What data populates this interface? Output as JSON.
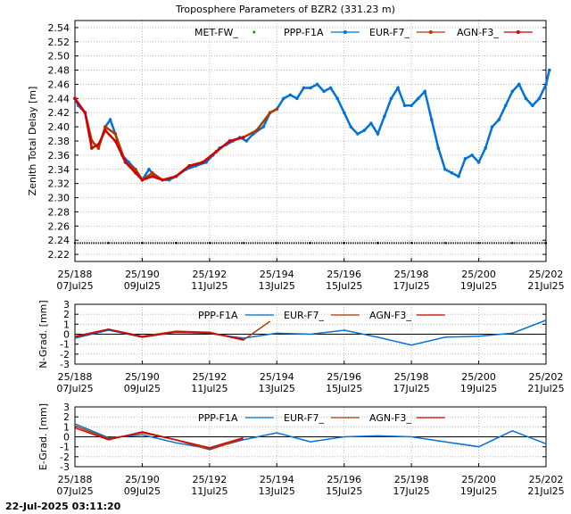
{
  "title": "Troposphere Parameters of BZR2 (331.23 m)",
  "footer": "22-Jul-2025 03:11:20",
  "colors": {
    "met": "#00a000",
    "ppp": "#0072d8",
    "eur": "#b03a00",
    "agn": "#d40000",
    "baseline": "#000000",
    "grid": "#aaaaaa"
  },
  "chart_data": [
    {
      "type": "scatter",
      "ylabel": "Zenith Total Delay [m]",
      "ylim": [
        2.21,
        2.55
      ],
      "yticks": [
        2.22,
        2.24,
        2.26,
        2.28,
        2.3,
        2.32,
        2.34,
        2.36,
        2.38,
        2.4,
        2.42,
        2.44,
        2.46,
        2.48,
        2.5,
        2.52,
        2.54
      ],
      "xlim": [
        188,
        202
      ],
      "xticks": [
        {
          "doy": 188,
          "l1": "25/188",
          "l2": "07Jul25"
        },
        {
          "doy": 190,
          "l1": "25/190",
          "l2": "09Jul25"
        },
        {
          "doy": 192,
          "l1": "25/192",
          "l2": "11Jul25"
        },
        {
          "doy": 194,
          "l1": "25/194",
          "l2": "13Jul25"
        },
        {
          "doy": 196,
          "l1": "25/196",
          "l2": "15Jul25"
        },
        {
          "doy": 198,
          "l1": "25/198",
          "l2": "17Jul25"
        },
        {
          "doy": 200,
          "l1": "25/200",
          "l2": "19Jul25"
        },
        {
          "doy": 202,
          "l1": "25/202",
          "l2": "21Jul25"
        }
      ],
      "grid": true,
      "legend_position": "top",
      "series": [
        {
          "name": "MET-FW_",
          "color_key": "met",
          "values": [
            [
              188.0,
              2.236
            ],
            [
              189.0,
              2.236
            ],
            [
              190.0,
              2.236
            ],
            [
              191.0,
              2.236
            ],
            [
              192.0,
              2.236
            ],
            [
              193.0,
              2.236
            ],
            [
              194.0,
              2.236
            ],
            [
              195.0,
              2.236
            ],
            [
              196.0,
              2.236
            ],
            [
              197.0,
              2.236
            ],
            [
              198.0,
              2.236
            ],
            [
              199.0,
              2.236
            ],
            [
              200.0,
              2.236
            ],
            [
              201.0,
              2.236
            ],
            [
              202.0,
              2.236
            ]
          ]
        },
        {
          "name": "PPP-F1A",
          "color_key": "ppp",
          "values": [
            [
              188.0,
              2.44
            ],
            [
              188.1,
              2.43
            ],
            [
              188.3,
              2.42
            ],
            [
              188.5,
              2.38
            ],
            [
              188.7,
              2.37
            ],
            [
              188.9,
              2.4
            ],
            [
              189.05,
              2.41
            ],
            [
              189.2,
              2.39
            ],
            [
              189.4,
              2.36
            ],
            [
              189.6,
              2.35
            ],
            [
              189.8,
              2.34
            ],
            [
              190.0,
              2.325
            ],
            [
              190.2,
              2.34
            ],
            [
              190.4,
              2.33
            ],
            [
              190.6,
              2.325
            ],
            [
              190.8,
              2.325
            ],
            [
              191.0,
              2.33
            ],
            [
              191.3,
              2.34
            ],
            [
              191.6,
              2.345
            ],
            [
              191.9,
              2.35
            ],
            [
              192.1,
              2.36
            ],
            [
              192.3,
              2.37
            ],
            [
              192.5,
              2.375
            ],
            [
              192.7,
              2.38
            ],
            [
              192.9,
              2.385
            ],
            [
              193.1,
              2.38
            ],
            [
              193.3,
              2.39
            ],
            [
              193.6,
              2.4
            ],
            [
              193.8,
              2.42
            ],
            [
              194.0,
              2.425
            ],
            [
              194.2,
              2.44
            ],
            [
              194.4,
              2.445
            ],
            [
              194.6,
              2.44
            ],
            [
              194.8,
              2.455
            ],
            [
              195.0,
              2.455
            ],
            [
              195.2,
              2.46
            ],
            [
              195.4,
              2.45
            ],
            [
              195.6,
              2.455
            ],
            [
              195.8,
              2.44
            ],
            [
              196.0,
              2.42
            ],
            [
              196.2,
              2.4
            ],
            [
              196.4,
              2.39
            ],
            [
              196.6,
              2.395
            ],
            [
              196.8,
              2.405
            ],
            [
              197.0,
              2.39
            ],
            [
              197.2,
              2.415
            ],
            [
              197.4,
              2.44
            ],
            [
              197.6,
              2.455
            ],
            [
              197.8,
              2.43
            ],
            [
              198.0,
              2.43
            ],
            [
              198.2,
              2.44
            ],
            [
              198.4,
              2.45
            ],
            [
              198.6,
              2.41
            ],
            [
              198.8,
              2.37
            ],
            [
              199.0,
              2.34
            ],
            [
              199.2,
              2.335
            ],
            [
              199.4,
              2.33
            ],
            [
              199.6,
              2.355
            ],
            [
              199.8,
              2.36
            ],
            [
              200.0,
              2.35
            ],
            [
              200.2,
              2.37
            ],
            [
              200.4,
              2.4
            ],
            [
              200.6,
              2.41
            ],
            [
              200.8,
              2.43
            ],
            [
              201.0,
              2.45
            ],
            [
              201.2,
              2.46
            ],
            [
              201.4,
              2.44
            ],
            [
              201.6,
              2.43
            ],
            [
              201.8,
              2.44
            ],
            [
              202.0,
              2.46
            ],
            [
              202.1,
              2.48
            ]
          ]
        },
        {
          "name": "EUR-F7_",
          "color_key": "eur",
          "values": [
            [
              188.0,
              2.44
            ],
            [
              188.3,
              2.42
            ],
            [
              188.5,
              2.38
            ],
            [
              188.7,
              2.37
            ],
            [
              188.9,
              2.4
            ],
            [
              189.2,
              2.39
            ],
            [
              189.5,
              2.35
            ],
            [
              189.8,
              2.34
            ],
            [
              190.0,
              2.325
            ],
            [
              190.3,
              2.335
            ],
            [
              190.6,
              2.325
            ],
            [
              191.0,
              2.33
            ],
            [
              191.4,
              2.345
            ],
            [
              191.8,
              2.35
            ],
            [
              192.2,
              2.365
            ],
            [
              192.6,
              2.38
            ],
            [
              193.0,
              2.385
            ],
            [
              193.4,
              2.395
            ],
            [
              193.8,
              2.42
            ],
            [
              194.0,
              2.425
            ]
          ]
        },
        {
          "name": "AGN-F3_",
          "color_key": "agn",
          "values": [
            [
              188.0,
              2.44
            ],
            [
              188.3,
              2.42
            ],
            [
              188.5,
              2.37
            ],
            [
              188.7,
              2.375
            ],
            [
              188.9,
              2.395
            ],
            [
              189.2,
              2.38
            ],
            [
              189.5,
              2.35
            ],
            [
              189.8,
              2.335
            ],
            [
              190.0,
              2.325
            ],
            [
              190.3,
              2.33
            ],
            [
              190.6,
              2.325
            ],
            [
              191.0,
              2.33
            ],
            [
              191.4,
              2.345
            ],
            [
              191.8,
              2.35
            ],
            [
              192.2,
              2.365
            ],
            [
              192.6,
              2.38
            ],
            [
              193.0,
              2.385
            ]
          ]
        }
      ]
    },
    {
      "type": "line",
      "ylabel": "N-Grad. [mm]",
      "ylim": [
        -3,
        3
      ],
      "yticks": [
        -3,
        -2,
        -1,
        0,
        1,
        2,
        3
      ],
      "xlim": [
        188,
        202
      ],
      "xticks": [
        {
          "doy": 188,
          "l1": "25/188",
          "l2": "07Jul25"
        },
        {
          "doy": 190,
          "l1": "25/190",
          "l2": "09Jul25"
        },
        {
          "doy": 192,
          "l1": "25/192",
          "l2": "11Jul25"
        },
        {
          "doy": 194,
          "l1": "25/194",
          "l2": "13Jul25"
        },
        {
          "doy": 196,
          "l1": "25/196",
          "l2": "15Jul25"
        },
        {
          "doy": 198,
          "l1": "25/198",
          "l2": "17Jul25"
        },
        {
          "doy": 200,
          "l1": "25/200",
          "l2": "19Jul25"
        },
        {
          "doy": 202,
          "l1": "25/202",
          "l2": "21Jul25"
        }
      ],
      "grid": true,
      "legend_position": "top",
      "series": [
        {
          "name": "PPP-F1A",
          "color_key": "ppp",
          "values": [
            [
              188.0,
              -0.4
            ],
            [
              189.0,
              0.4
            ],
            [
              190.0,
              -0.3
            ],
            [
              191.0,
              0.2
            ],
            [
              192.0,
              0.1
            ],
            [
              193.0,
              -0.4
            ],
            [
              194.0,
              0.1
            ],
            [
              195.0,
              0.0
            ],
            [
              196.0,
              0.4
            ],
            [
              197.0,
              -0.3
            ],
            [
              198.0,
              -1.1
            ],
            [
              199.0,
              -0.3
            ],
            [
              200.0,
              -0.2
            ],
            [
              201.0,
              0.1
            ],
            [
              202.0,
              1.4
            ]
          ]
        },
        {
          "name": "EUR-F7_",
          "color_key": "eur",
          "values": [
            [
              188.0,
              -0.2
            ],
            [
              189.0,
              0.5
            ],
            [
              190.0,
              -0.2
            ],
            [
              191.0,
              0.3
            ],
            [
              192.0,
              0.2
            ],
            [
              193.0,
              -0.6
            ],
            [
              193.8,
              1.3
            ]
          ]
        },
        {
          "name": "AGN-F3_",
          "color_key": "agn",
          "values": [
            [
              188.0,
              -0.3
            ],
            [
              189.0,
              0.5
            ],
            [
              190.0,
              -0.3
            ],
            [
              191.0,
              0.2
            ],
            [
              192.0,
              0.1
            ],
            [
              193.0,
              -0.5
            ]
          ]
        }
      ]
    },
    {
      "type": "line",
      "ylabel": "E-Grad. [mm]",
      "ylim": [
        -3,
        3
      ],
      "yticks": [
        -3,
        -2,
        -1,
        0,
        1,
        2,
        3
      ],
      "xlim": [
        188,
        202
      ],
      "xticks": [
        {
          "doy": 188,
          "l1": "25/188",
          "l2": "07Jul25"
        },
        {
          "doy": 190,
          "l1": "25/190",
          "l2": "09Jul25"
        },
        {
          "doy": 192,
          "l1": "25/192",
          "l2": "11Jul25"
        },
        {
          "doy": 194,
          "l1": "25/194",
          "l2": "13Jul25"
        },
        {
          "doy": 196,
          "l1": "25/196",
          "l2": "15Jul25"
        },
        {
          "doy": 198,
          "l1": "25/198",
          "l2": "17Jul25"
        },
        {
          "doy": 200,
          "l1": "25/200",
          "l2": "19Jul25"
        },
        {
          "doy": 202,
          "l1": "25/202",
          "l2": "21Jul25"
        }
      ],
      "grid": true,
      "legend_position": "top",
      "series": [
        {
          "name": "PPP-F1A",
          "color_key": "ppp",
          "values": [
            [
              188.0,
              1.3
            ],
            [
              189.0,
              -0.1
            ],
            [
              190.0,
              0.2
            ],
            [
              191.0,
              -0.6
            ],
            [
              192.0,
              -1.2
            ],
            [
              193.0,
              -0.3
            ],
            [
              194.0,
              0.4
            ],
            [
              195.0,
              -0.5
            ],
            [
              196.0,
              0.0
            ],
            [
              197.0,
              0.1
            ],
            [
              198.0,
              0.0
            ],
            [
              199.0,
              -0.5
            ],
            [
              200.0,
              -1.0
            ],
            [
              201.0,
              0.6
            ],
            [
              202.0,
              -0.7
            ]
          ]
        },
        {
          "name": "EUR-F7_",
          "color_key": "eur",
          "values": [
            [
              188.0,
              1.1
            ],
            [
              189.0,
              -0.2
            ],
            [
              190.0,
              0.4
            ],
            [
              191.0,
              -0.3
            ],
            [
              192.0,
              -1.3
            ],
            [
              193.0,
              -0.2
            ]
          ]
        },
        {
          "name": "AGN-F3_",
          "color_key": "agn",
          "values": [
            [
              188.0,
              0.9
            ],
            [
              189.0,
              -0.3
            ],
            [
              190.0,
              0.5
            ],
            [
              191.0,
              -0.3
            ],
            [
              192.0,
              -1.1
            ],
            [
              193.0,
              -0.1
            ]
          ]
        }
      ]
    }
  ]
}
